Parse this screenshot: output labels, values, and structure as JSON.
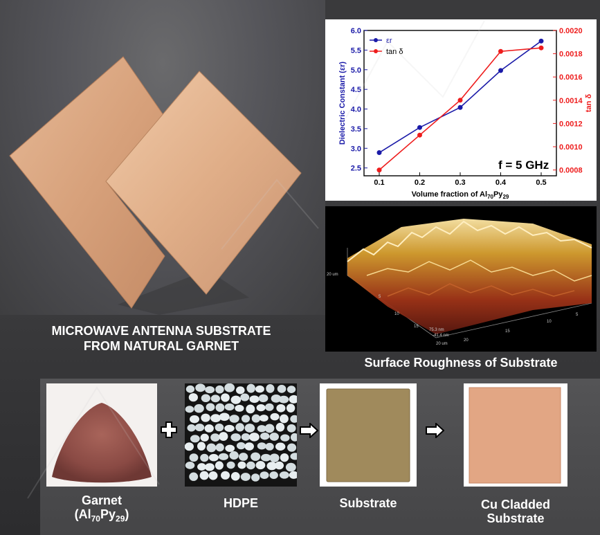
{
  "main_caption_line1": "MICROWAVE ANTENNA SUBSTRATE",
  "main_caption_line2": "FROM NATURAL GARNET",
  "afm_caption": "Surface Roughness of Substrate",
  "afm_axis_text": {
    "x_ticks": [
      "5",
      "10",
      "15",
      "20"
    ],
    "y_ticks": [
      "5",
      "10",
      "15",
      "20"
    ],
    "corner_label_left": "20 um",
    "corner_label_bottom": "20 um",
    "z_label": "75.3 nm",
    "z_label2": "-41.4 nm"
  },
  "process": {
    "steps": [
      {
        "name": "Garnet",
        "formula_prefix": "(Al",
        "sub1": "70",
        "formula_mid": "Py",
        "sub2": "29",
        "formula_suffix": ")"
      },
      {
        "name": "HDPE"
      },
      {
        "name": "Substrate"
      },
      {
        "name_line1": "Cu Cladded",
        "name_line2": "Substrate"
      }
    ],
    "operators": [
      "plus",
      "arrow",
      "arrow"
    ]
  },
  "chart_data": {
    "type": "line",
    "x": [
      0.1,
      0.2,
      0.3,
      0.4,
      0.5
    ],
    "xlabel_prefix": "Volume fraction of Al",
    "xlabel_sub1": "70",
    "xlabel_mid": "Py",
    "xlabel_sub2": "29",
    "xlim": [
      0.1,
      0.5
    ],
    "x_ticks": [
      "0.1",
      "0.2",
      "0.3",
      "0.4",
      "0.5"
    ],
    "series": [
      {
        "name": "εr",
        "axis": "left",
        "color": "#1a1aa8",
        "values": [
          2.89,
          3.53,
          4.04,
          4.98,
          5.73
        ]
      },
      {
        "name": "tan δ",
        "axis": "right",
        "color": "#ee1c1c",
        "values": [
          0.0008,
          0.0011,
          0.0014,
          0.00182,
          0.00185
        ]
      }
    ],
    "ylabel_left": "Dielectric Constant (εr)",
    "ylim_left": [
      2.3,
      6.0
    ],
    "y_ticks_left": [
      "2.5",
      "3.0",
      "3.5",
      "4.0",
      "4.5",
      "5.0",
      "5.5",
      "6.0"
    ],
    "ylabel_right": "tan δ",
    "ylim_right": [
      0.00075,
      0.002
    ],
    "y_ticks_right": [
      "0.0008",
      "0.0010",
      "0.0012",
      "0.0014",
      "0.0016",
      "0.0018",
      "0.0020"
    ],
    "annotation": "f = 5 GHz",
    "legend_position": "top-left",
    "grid": false
  },
  "colors": {
    "left_axis": "#1a1aa8",
    "right_axis": "#ee1c1c",
    "copper": "#d9a57f"
  }
}
